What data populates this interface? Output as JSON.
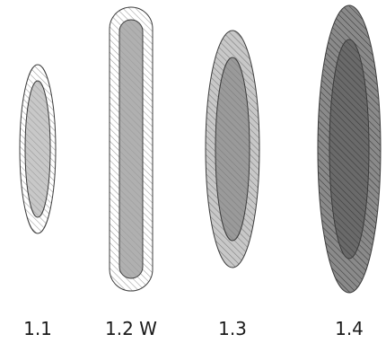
{
  "figure": {
    "shapes": [
      {
        "id": "1.1",
        "label": "1.1",
        "form": "ellipse",
        "outer_fill": "#ffffff",
        "inner_fill": "#c8c8c8",
        "hatch": "#9a9a9a"
      },
      {
        "id": "1.2",
        "label": "1.2 W",
        "form": "capsule",
        "outer_fill": "#ffffff",
        "inner_fill": "#b0b0b0",
        "hatch": "#9a9a9a"
      },
      {
        "id": "1.3",
        "label": "1.3",
        "form": "ellipse",
        "outer_fill": "#c8c8c8",
        "inner_fill": "#9a9a9a",
        "hatch": "#7a7a7a"
      },
      {
        "id": "1.4",
        "label": "1.4",
        "form": "ellipse",
        "outer_fill": "#8a8a8a",
        "inner_fill": "#6a6a6a",
        "hatch": "#3a3a3a"
      }
    ],
    "stroke_color": "#3c3c3c"
  }
}
